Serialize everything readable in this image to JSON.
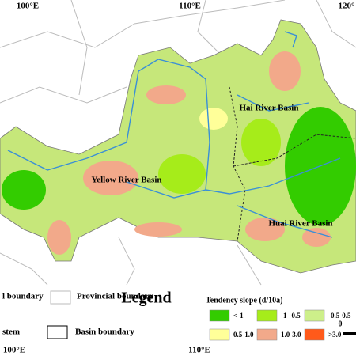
{
  "map": {
    "top_labels": [
      "100°E",
      "110°E",
      "120°"
    ],
    "bottom_labels": [
      "100°E",
      "110°E"
    ],
    "basins": [
      "Yellow  River  Basin",
      "Hai River Basin",
      "Huai  River  Basin"
    ]
  },
  "legend": {
    "title": "Legend",
    "boundaries": [
      "l boundary",
      "Provincial boundary",
      "stem",
      "Basin boundary"
    ],
    "slope_title": "Tendency slope (d/10a)",
    "classes": [
      {
        "label": "<-1",
        "color": "#33cc00"
      },
      {
        "label": "-1--0.5",
        "color": "#a6ec1a"
      },
      {
        "label": "-0.5-0.5",
        "color": "#cdef8a"
      },
      {
        "label": "0.5-1.0",
        "color": "#ffff99"
      },
      {
        "label": "1.0-3.0",
        "color": "#f2a98a"
      },
      {
        "label": ">3.0",
        "color": "#ff5a1a"
      }
    ],
    "scale_label": "0"
  }
}
